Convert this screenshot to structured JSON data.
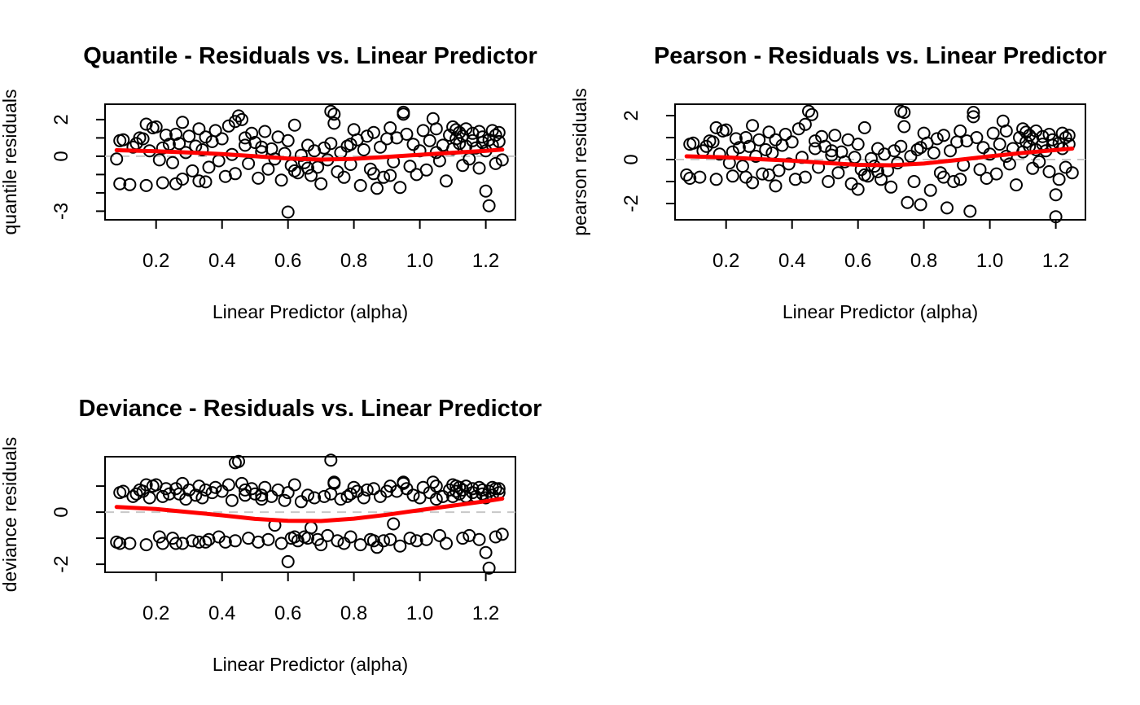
{
  "figure": {
    "layout": "2x2-grid-three-panels",
    "background": "#ffffff"
  },
  "colors": {
    "points": "#000000",
    "smooth": "#ff0000",
    "zero_line": "#c8c8c8",
    "box": "#000000",
    "text": "#000000"
  },
  "shared_x": [
    0.08,
    0.09,
    0.09,
    0.1,
    0.12,
    0.13,
    0.15,
    0.16,
    0.17,
    0.17,
    0.18,
    0.19,
    0.2,
    0.21,
    0.22,
    0.22,
    0.23,
    0.24,
    0.25,
    0.26,
    0.26,
    0.27,
    0.28,
    0.29,
    0.3,
    0.31,
    0.32,
    0.33,
    0.33,
    0.34,
    0.35,
    0.36,
    0.37,
    0.38,
    0.39,
    0.4,
    0.41,
    0.42,
    0.43,
    0.44,
    0.44,
    0.45,
    0.46,
    0.47,
    0.48,
    0.49,
    0.5,
    0.51,
    0.52,
    0.53,
    0.54,
    0.55,
    0.56,
    0.57,
    0.58,
    0.59,
    0.6,
    0.6,
    0.61,
    0.62,
    0.63,
    0.64,
    0.65,
    0.66,
    0.67,
    0.68,
    0.69,
    0.7,
    0.71,
    0.72,
    0.73,
    0.73,
    0.74,
    0.75,
    0.76,
    0.77,
    0.78,
    0.79,
    0.8,
    0.81,
    0.82,
    0.83,
    0.84,
    0.85,
    0.86,
    0.87,
    0.88,
    0.89,
    0.9,
    0.91,
    0.92,
    0.93,
    0.94,
    0.95,
    0.96,
    0.97,
    0.98,
    0.99,
    1.0,
    1.01,
    1.02,
    1.03,
    1.04,
    1.05,
    1.06,
    1.07,
    1.08,
    1.09,
    1.1,
    1.1,
    1.11,
    1.11,
    1.12,
    1.12,
    1.13,
    1.13,
    1.14,
    1.14,
    1.15,
    1.16,
    1.16,
    1.17,
    1.18,
    1.18,
    1.19,
    1.19,
    1.2,
    1.2,
    1.21,
    1.21,
    1.22,
    1.22,
    1.23,
    1.23,
    1.24,
    1.24,
    1.25,
    0.14,
    0.35,
    0.52,
    0.66,
    0.74,
    0.86,
    0.95,
    1.05,
    0.28,
    0.47,
    0.62,
    0.79,
    0.91
  ],
  "chart_data": [
    {
      "id": "quantile",
      "type": "scatter",
      "title": "Quantile - Residuals vs. Linear Predictor",
      "xlabel": "Linear Predictor (alpha)",
      "ylabel": "quantile residuals",
      "xlim": [
        0.045,
        1.29
      ],
      "ylim": [
        -3.47,
        2.84
      ],
      "grid": false,
      "x_source": "shared_x",
      "x_ticks": [
        {
          "v": 0.2,
          "label": "0.2"
        },
        {
          "v": 0.4,
          "label": "0.4"
        },
        {
          "v": 0.6,
          "label": "0.6"
        },
        {
          "v": 0.8,
          "label": "0.8"
        },
        {
          "v": 1.0,
          "label": "1.0"
        },
        {
          "v": 1.2,
          "label": "1.2"
        }
      ],
      "y_ticks": [
        {
          "v": 2,
          "label": "2"
        },
        {
          "v": 1,
          "label": ""
        },
        {
          "v": 0,
          "label": "0"
        },
        {
          "v": -1,
          "label": ""
        },
        {
          "v": -2,
          "label": ""
        },
        {
          "v": -3,
          "label": "-3"
        }
      ],
      "zero_line_y": 0,
      "y": [
        -0.15,
        -1.5,
        0.85,
        0.9,
        -1.55,
        0.5,
        1.0,
        0.95,
        1.75,
        -1.6,
        0.3,
        1.55,
        1.6,
        -0.2,
        0.45,
        -1.45,
        1.15,
        0.65,
        -0.35,
        1.2,
        -1.5,
        0.7,
        1.85,
        0.2,
        1.1,
        -0.8,
        0.55,
        1.5,
        -1.35,
        0.35,
        1.05,
        -0.6,
        0.8,
        1.4,
        -0.25,
        0.95,
        -1.1,
        1.65,
        0.1,
        1.9,
        -0.95,
        2.2,
        2.0,
        0.6,
        -0.4,
        1.25,
        0.75,
        -1.2,
        0.25,
        1.35,
        -0.7,
        0.4,
        -0.15,
        1.05,
        -1.3,
        0.15,
        -3.05,
        0.85,
        -0.5,
        1.7,
        -0.9,
        0.05,
        -0.35,
        0.6,
        -1.05,
        0.3,
        -0.6,
        -1.5,
        0.45,
        -0.2,
        2.45,
        0.7,
        2.3,
        -0.85,
        0.2,
        -1.15,
        0.55,
        -0.45,
        1.45,
        0.9,
        -1.6,
        0.35,
        1.1,
        -0.7,
        1.3,
        -1.75,
        0.5,
        -1.15,
        0.95,
        1.55,
        -0.3,
        1.0,
        -1.7,
        2.4,
        1.2,
        -0.55,
        0.65,
        -1.0,
        0.3,
        1.4,
        -0.75,
        0.85,
        2.05,
        1.5,
        -0.25,
        0.6,
        -1.35,
        1.15,
        0.4,
        1.6,
        0.95,
        1.45,
        0.7,
        1.3,
        -0.5,
        1.1,
        0.55,
        1.5,
        -0.15,
        0.85,
        1.25,
        0.45,
        1.35,
        -0.65,
        0.75,
        1.05,
        0.3,
        -1.9,
        0.9,
        -2.7,
        1.4,
        0.6,
        1.15,
        -0.4,
        0.8,
        1.3,
        -0.2,
        0.7,
        -1.4,
        0.5,
        -0.65,
        1.8,
        -0.95,
        2.3,
        0.2,
        -1.25,
        1.0,
        -0.8,
        0.65,
        -1.05
      ],
      "smooth": [
        [
          0.08,
          0.33
        ],
        [
          0.2,
          0.27
        ],
        [
          0.3,
          0.2
        ],
        [
          0.4,
          0.12
        ],
        [
          0.5,
          0.0
        ],
        [
          0.6,
          -0.13
        ],
        [
          0.7,
          -0.18
        ],
        [
          0.8,
          -0.14
        ],
        [
          0.9,
          -0.04
        ],
        [
          1.0,
          0.08
        ],
        [
          1.1,
          0.19
        ],
        [
          1.2,
          0.3
        ],
        [
          1.25,
          0.36
        ]
      ]
    },
    {
      "id": "pearson",
      "type": "scatter",
      "title": "Pearson - Residuals vs. Linear Predictor",
      "xlabel": "Linear Predictor (alpha)",
      "ylabel": "pearson residuals",
      "xlim": [
        0.045,
        1.29
      ],
      "ylim": [
        -2.74,
        2.52
      ],
      "grid": false,
      "x_source": "shared_x",
      "x_ticks": [
        {
          "v": 0.2,
          "label": "0.2"
        },
        {
          "v": 0.4,
          "label": "0.4"
        },
        {
          "v": 0.6,
          "label": "0.6"
        },
        {
          "v": 0.8,
          "label": "0.8"
        },
        {
          "v": 1.0,
          "label": "1.0"
        },
        {
          "v": 1.2,
          "label": "1.2"
        }
      ],
      "y_ticks": [
        {
          "v": 2,
          "label": "2"
        },
        {
          "v": 1,
          "label": ""
        },
        {
          "v": 0,
          "label": "0"
        },
        {
          "v": -1,
          "label": ""
        },
        {
          "v": -2,
          "label": "-2"
        }
      ],
      "zero_line_y": 0,
      "y": [
        -0.7,
        -0.85,
        0.7,
        0.75,
        -0.8,
        0.4,
        0.85,
        0.8,
        1.45,
        -0.9,
        0.25,
        1.3,
        1.35,
        -0.15,
        0.35,
        -0.75,
        0.95,
        0.55,
        -0.3,
        1.0,
        -0.8,
        0.6,
        1.55,
        0.15,
        0.9,
        -0.65,
        0.45,
        1.25,
        -0.7,
        0.3,
        0.9,
        -0.5,
        0.65,
        1.15,
        -0.2,
        0.8,
        -0.9,
        1.4,
        0.1,
        1.6,
        -0.8,
        2.2,
        2.05,
        0.5,
        -0.35,
        1.05,
        0.6,
        -1.0,
        0.2,
        1.1,
        -0.6,
        0.35,
        -0.1,
        0.9,
        -1.1,
        0.1,
        -1.35,
        0.7,
        -0.45,
        1.45,
        -0.75,
        0.05,
        -0.3,
        0.5,
        -0.9,
        0.25,
        -0.5,
        -1.25,
        0.4,
        -0.15,
        2.2,
        0.6,
        2.15,
        -1.95,
        0.15,
        -1.0,
        0.45,
        -2.05,
        1.2,
        0.75,
        -1.4,
        0.3,
        0.95,
        -0.6,
        1.1,
        -2.2,
        0.4,
        -1.0,
        0.8,
        1.3,
        -0.25,
        0.85,
        -2.35,
        2.15,
        1.0,
        -0.45,
        0.55,
        -0.85,
        0.25,
        1.2,
        -0.65,
        0.7,
        1.75,
        1.3,
        -0.2,
        0.5,
        -1.15,
        1.0,
        0.35,
        1.4,
        0.8,
        1.25,
        0.6,
        1.1,
        -0.4,
        0.95,
        0.45,
        1.3,
        -0.1,
        0.7,
        1.05,
        0.4,
        1.15,
        -0.55,
        0.65,
        0.9,
        -2.6,
        -1.6,
        0.75,
        -0.9,
        1.2,
        0.5,
        1.0,
        -0.35,
        0.7,
        1.1,
        -0.6,
        0.6,
        -1.2,
        0.4,
        -0.55,
        1.5,
        -0.8,
        1.95,
        0.15,
        -1.05,
        0.85,
        -0.7,
        0.55,
        -0.9
      ],
      "smooth": [
        [
          0.08,
          0.15
        ],
        [
          0.2,
          0.1
        ],
        [
          0.3,
          0.02
        ],
        [
          0.4,
          -0.05
        ],
        [
          0.5,
          -0.15
        ],
        [
          0.6,
          -0.24
        ],
        [
          0.7,
          -0.26
        ],
        [
          0.8,
          -0.18
        ],
        [
          0.9,
          -0.02
        ],
        [
          1.0,
          0.15
        ],
        [
          1.1,
          0.3
        ],
        [
          1.2,
          0.44
        ],
        [
          1.25,
          0.5
        ]
      ]
    },
    {
      "id": "deviance",
      "type": "scatter",
      "title": "Deviance - Residuals vs. Linear Predictor",
      "xlabel": "Linear Predictor (alpha)",
      "ylabel": "deviance residuals",
      "xlim": [
        0.045,
        1.29
      ],
      "ylim": [
        -2.31,
        2.13
      ],
      "grid": false,
      "x_source": "shared_x",
      "x_ticks": [
        {
          "v": 0.2,
          "label": "0.2"
        },
        {
          "v": 0.4,
          "label": "0.4"
        },
        {
          "v": 0.6,
          "label": "0.6"
        },
        {
          "v": 0.8,
          "label": "0.8"
        },
        {
          "v": 1.0,
          "label": "1.0"
        },
        {
          "v": 1.2,
          "label": "1.2"
        }
      ],
      "y_ticks": [
        {
          "v": 1,
          "label": ""
        },
        {
          "v": 0,
          "label": "0"
        },
        {
          "v": -1,
          "label": ""
        },
        {
          "v": -2,
          "label": "-2"
        }
      ],
      "zero_line_y": 0,
      "y": [
        -1.15,
        -1.2,
        0.75,
        0.8,
        -1.2,
        0.6,
        0.85,
        0.8,
        1.05,
        -1.25,
        0.55,
        1.0,
        1.05,
        -0.95,
        0.6,
        -1.2,
        0.9,
        0.7,
        -1.0,
        0.9,
        -1.2,
        0.7,
        1.1,
        0.5,
        0.85,
        -1.1,
        0.65,
        1.0,
        -1.15,
        0.55,
        0.85,
        -1.05,
        0.75,
        0.95,
        -0.95,
        0.8,
        -1.15,
        1.05,
        0.45,
        1.9,
        -1.1,
        1.95,
        1.1,
        0.65,
        -1.0,
        0.9,
        0.7,
        -1.15,
        0.5,
        0.95,
        -1.05,
        0.6,
        -0.5,
        0.85,
        -1.2,
        0.45,
        -1.9,
        0.75,
        -1.0,
        1.05,
        -1.1,
        0.4,
        -0.95,
        0.65,
        -0.6,
        0.55,
        -1.05,
        -1.25,
        0.6,
        -0.9,
        2.0,
        0.7,
        1.15,
        -1.1,
        0.5,
        -1.2,
        0.6,
        -0.95,
        0.95,
        0.8,
        -1.25,
        0.55,
        0.85,
        -1.05,
        0.9,
        -1.35,
        0.6,
        -1.1,
        0.8,
        1.0,
        -0.45,
        0.8,
        -1.3,
        1.1,
        0.9,
        -1.0,
        0.65,
        -1.1,
        0.55,
        0.95,
        -1.05,
        0.75,
        1.15,
        1.0,
        -0.9,
        0.6,
        -1.2,
        0.85,
        0.6,
        1.05,
        0.8,
        1.0,
        0.7,
        0.95,
        -1.0,
        0.85,
        0.6,
        1.0,
        -0.9,
        0.75,
        0.9,
        0.6,
        0.95,
        -1.05,
        0.7,
        0.85,
        0.55,
        -1.55,
        0.8,
        -2.15,
        0.95,
        0.65,
        0.9,
        -0.95,
        0.75,
        0.9,
        -0.85,
        0.7,
        -1.15,
        0.65,
        -1.0,
        1.1,
        -1.1,
        1.15,
        0.5,
        -1.2,
        0.85,
        -0.95,
        0.7,
        -1.05
      ],
      "smooth": [
        [
          0.08,
          0.2
        ],
        [
          0.2,
          0.12
        ],
        [
          0.3,
          0.0
        ],
        [
          0.4,
          -0.12
        ],
        [
          0.5,
          -0.26
        ],
        [
          0.6,
          -0.33
        ],
        [
          0.7,
          -0.34
        ],
        [
          0.8,
          -0.25
        ],
        [
          0.9,
          -0.1
        ],
        [
          1.0,
          0.08
        ],
        [
          1.1,
          0.25
        ],
        [
          1.2,
          0.42
        ],
        [
          1.25,
          0.52
        ]
      ]
    }
  ]
}
